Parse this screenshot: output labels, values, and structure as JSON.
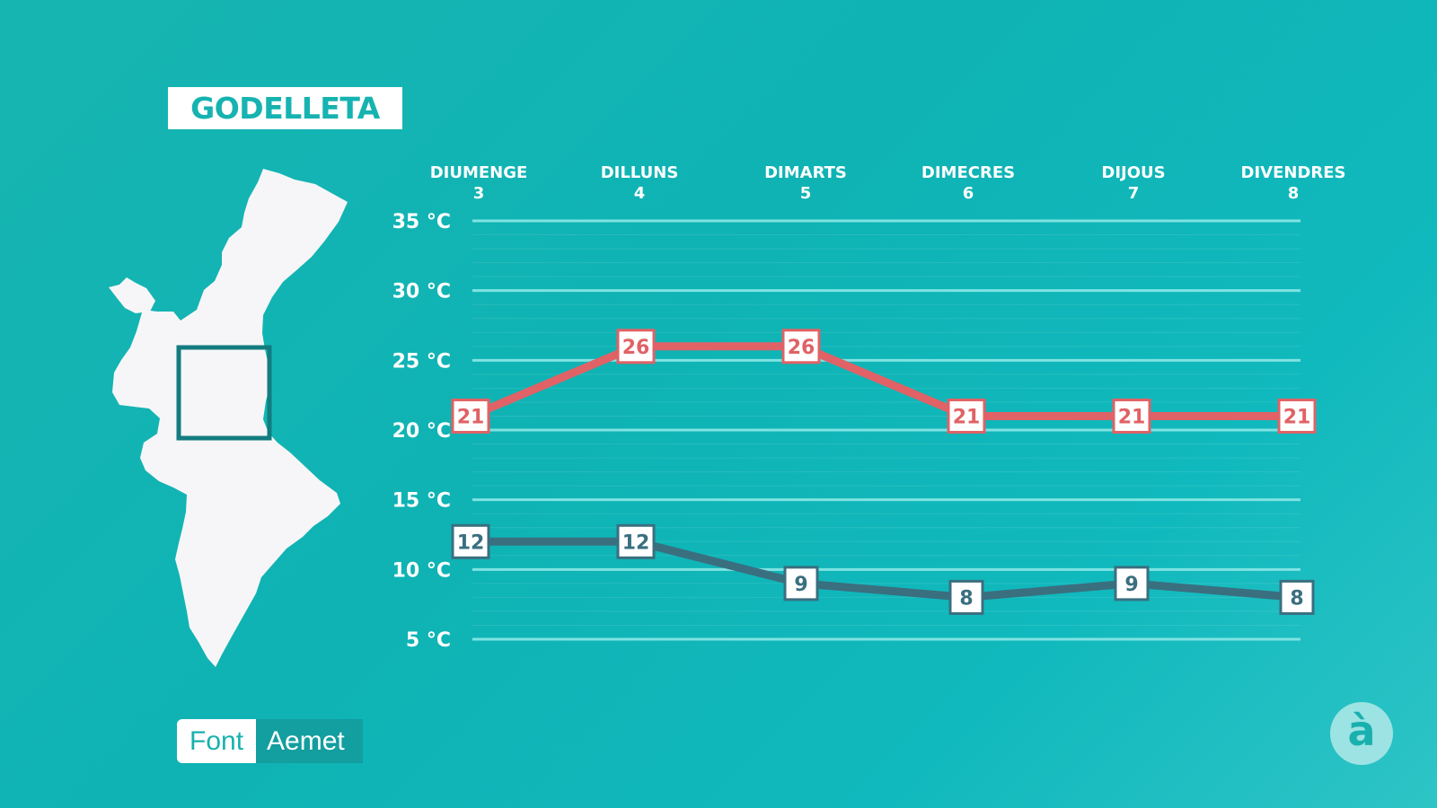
{
  "location": "GODELLETA",
  "source": {
    "label": "Font",
    "value": "Aemet"
  },
  "logo": {
    "glyph": "à",
    "icon": "apunt-logo-icon"
  },
  "map": {
    "icon": "valencian-community-map-icon",
    "color": "#f6f6f8",
    "highlight_color": "#137c80"
  },
  "colors": {
    "max": "#e06266",
    "min": "#3a6f80",
    "grid": "#7fe3e2"
  },
  "chart_data": {
    "type": "line",
    "categories": [
      {
        "day": "DIUMENGE",
        "date": "3"
      },
      {
        "day": "DILLUNS",
        "date": "4"
      },
      {
        "day": "DIMARTS",
        "date": "5"
      },
      {
        "day": "DIMECRES",
        "date": "6"
      },
      {
        "day": "DIJOUS",
        "date": "7"
      },
      {
        "day": "DIVENDRES",
        "date": "8"
      }
    ],
    "series": [
      {
        "key": "max",
        "values": [
          21,
          26,
          26,
          21,
          21,
          21
        ]
      },
      {
        "key": "min",
        "values": [
          12,
          12,
          9,
          8,
          9,
          8
        ]
      }
    ],
    "y_ticks": [
      "5 °C",
      "10 °C",
      "15 °C",
      "20 °C",
      "25 °C",
      "30 °C",
      "35 °C"
    ],
    "y_tick_values": [
      5,
      10,
      15,
      20,
      25,
      30,
      35
    ],
    "ylim": [
      5,
      35
    ],
    "grid": true
  }
}
